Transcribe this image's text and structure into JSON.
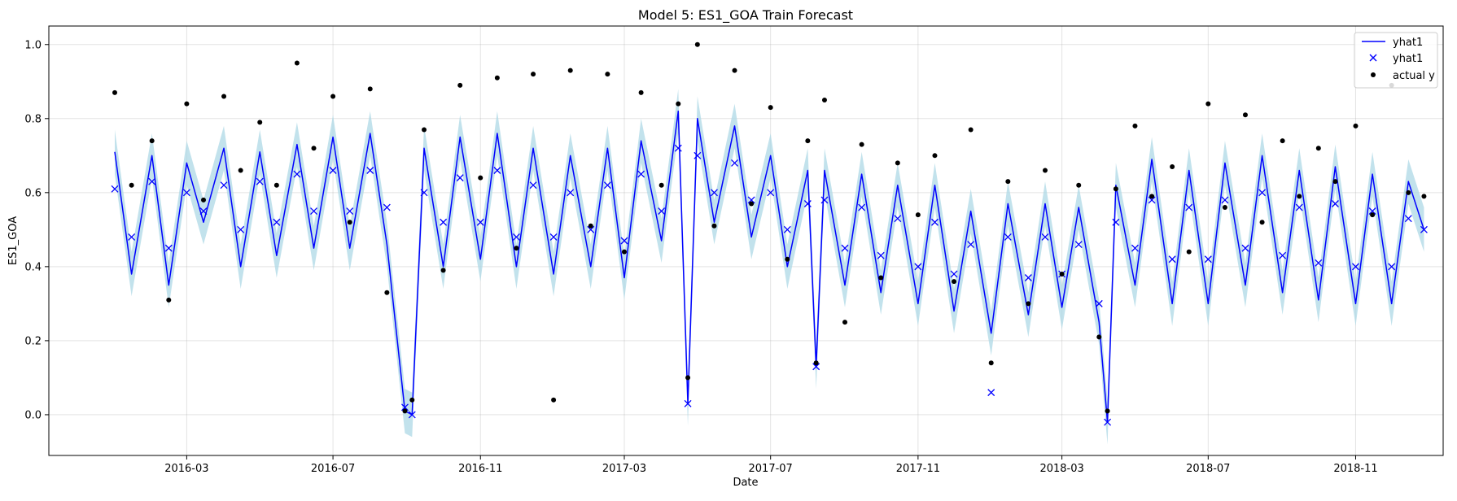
{
  "chart_data": {
    "type": "line",
    "title": "Model 5: ES1_GOA Train Forecast",
    "xlabel": "Date",
    "ylabel": "ES1_GOA",
    "x_range": [
      "2015-11-07",
      "2019-01-13"
    ],
    "ylim": [
      -0.11,
      1.05
    ],
    "x_tick_labels": [
      "2016-03",
      "2016-07",
      "2016-11",
      "2017-03",
      "2017-07",
      "2017-11",
      "2018-03",
      "2018-07",
      "2018-11"
    ],
    "x_tick_dates": [
      "2016-03-01",
      "2016-07-01",
      "2016-11-01",
      "2017-03-01",
      "2017-07-01",
      "2017-11-01",
      "2018-03-01",
      "2018-07-01",
      "2018-11-01"
    ],
    "y_tick_labels": [
      "0.0",
      "0.2",
      "0.4",
      "0.6",
      "0.8",
      "1.0"
    ],
    "y_tick_values": [
      0.0,
      0.2,
      0.4,
      0.6,
      0.8,
      1.0
    ],
    "grid": true,
    "legend_position": "top-right",
    "legend": [
      {
        "label": "yhat1",
        "kind": "line",
        "color": "#0000ff"
      },
      {
        "label": "yhat1",
        "kind": "cross",
        "color": "#0000ff"
      },
      {
        "label": "actual y",
        "kind": "dot",
        "color": "#000000"
      }
    ],
    "colors": {
      "forecast": "#0000ff",
      "band": "#add8e6",
      "actual": "#000000"
    },
    "dates": [
      "2016-01-01",
      "2016-01-15",
      "2016-02-01",
      "2016-02-15",
      "2016-03-01",
      "2016-03-15",
      "2016-04-01",
      "2016-04-15",
      "2016-05-01",
      "2016-05-15",
      "2016-06-01",
      "2016-06-15",
      "2016-07-01",
      "2016-07-15",
      "2016-08-01",
      "2016-08-15",
      "2016-08-30",
      "2016-09-05",
      "2016-09-15",
      "2016-10-01",
      "2016-10-15",
      "2016-11-01",
      "2016-11-15",
      "2016-12-01",
      "2016-12-15",
      "2017-01-01",
      "2017-01-15",
      "2017-02-01",
      "2017-02-15",
      "2017-03-01",
      "2017-03-15",
      "2017-04-01",
      "2017-04-15",
      "2017-04-23",
      "2017-05-01",
      "2017-05-15",
      "2017-06-01",
      "2017-06-15",
      "2017-07-01",
      "2017-07-15",
      "2017-08-01",
      "2017-08-08",
      "2017-08-15",
      "2017-09-01",
      "2017-09-15",
      "2017-10-01",
      "2017-10-15",
      "2017-11-01",
      "2017-11-15",
      "2017-12-01",
      "2017-12-15",
      "2018-01-01",
      "2018-01-15",
      "2018-02-01",
      "2018-02-15",
      "2018-03-01",
      "2018-03-15",
      "2018-04-01",
      "2018-04-08",
      "2018-04-15",
      "2018-05-01",
      "2018-05-15",
      "2018-06-01",
      "2018-06-15",
      "2018-07-01",
      "2018-07-15",
      "2018-08-01",
      "2018-08-15",
      "2018-09-01",
      "2018-09-15",
      "2018-10-01",
      "2018-10-15",
      "2018-11-01",
      "2018-11-15",
      "2018-12-01",
      "2018-12-15",
      "2018-12-28"
    ],
    "series": [
      {
        "name": "yhat1",
        "style": "line",
        "color": "#0000ff",
        "values": [
          0.71,
          0.38,
          0.7,
          0.35,
          0.68,
          0.52,
          0.72,
          0.4,
          0.71,
          0.43,
          0.73,
          0.45,
          0.75,
          0.45,
          0.76,
          0.46,
          0.01,
          0.0,
          0.72,
          0.4,
          0.75,
          0.42,
          0.76,
          0.4,
          0.72,
          0.38,
          0.7,
          0.4,
          0.72,
          0.37,
          0.74,
          0.47,
          0.82,
          0.03,
          0.8,
          0.52,
          0.78,
          0.48,
          0.7,
          0.4,
          0.66,
          0.13,
          0.66,
          0.35,
          0.65,
          0.33,
          0.62,
          0.3,
          0.62,
          0.28,
          0.55,
          0.22,
          0.57,
          0.27,
          0.57,
          0.29,
          0.56,
          0.25,
          -0.02,
          0.62,
          0.35,
          0.69,
          0.3,
          0.66,
          0.3,
          0.68,
          0.35,
          0.7,
          0.33,
          0.66,
          0.31,
          0.67,
          0.3,
          0.65,
          0.3,
          0.63,
          0.5
        ]
      },
      {
        "name": "yhat1",
        "style": "cross",
        "color": "#0000ff",
        "values": [
          0.61,
          0.48,
          0.63,
          0.45,
          0.6,
          0.55,
          0.62,
          0.5,
          0.63,
          0.52,
          0.65,
          0.55,
          0.66,
          0.55,
          0.66,
          0.56,
          0.02,
          0.0,
          0.6,
          0.52,
          0.64,
          0.52,
          0.66,
          0.48,
          0.62,
          0.48,
          0.6,
          0.5,
          0.62,
          0.47,
          0.65,
          0.55,
          0.72,
          0.03,
          0.7,
          0.6,
          0.68,
          0.58,
          0.6,
          0.5,
          0.57,
          0.13,
          0.58,
          0.45,
          0.56,
          0.43,
          0.53,
          0.4,
          0.52,
          0.38,
          0.46,
          0.06,
          0.48,
          0.37,
          0.48,
          0.38,
          0.46,
          0.3,
          -0.02,
          0.52,
          0.45,
          0.58,
          0.42,
          0.56,
          0.42,
          0.58,
          0.45,
          0.6,
          0.43,
          0.56,
          0.41,
          0.57,
          0.4,
          0.55,
          0.4,
          0.53,
          0.5
        ]
      },
      {
        "name": "actual y",
        "style": "dot",
        "color": "#000000",
        "values": [
          0.87,
          0.62,
          0.74,
          0.31,
          0.84,
          0.58,
          0.86,
          0.66,
          0.79,
          0.62,
          0.95,
          0.72,
          0.86,
          0.52,
          0.88,
          0.33,
          0.01,
          0.04,
          0.77,
          0.39,
          0.89,
          0.64,
          0.91,
          0.45,
          0.92,
          0.04,
          0.93,
          0.51,
          0.92,
          0.44,
          0.87,
          0.62,
          0.84,
          0.1,
          1.0,
          0.51,
          0.93,
          0.57,
          0.83,
          0.42,
          0.74,
          0.14,
          0.85,
          0.25,
          0.73,
          0.37,
          0.68,
          0.54,
          0.7,
          0.36,
          0.77,
          0.14,
          0.63,
          0.3,
          0.66,
          0.38,
          0.62,
          0.21,
          0.01,
          0.61,
          0.78,
          0.59,
          0.67,
          0.44,
          0.84,
          0.56,
          0.81,
          0.52,
          0.74,
          0.59,
          0.72,
          0.63,
          0.78,
          0.54,
          0.89,
          0.6,
          0.59
        ]
      }
    ]
  }
}
